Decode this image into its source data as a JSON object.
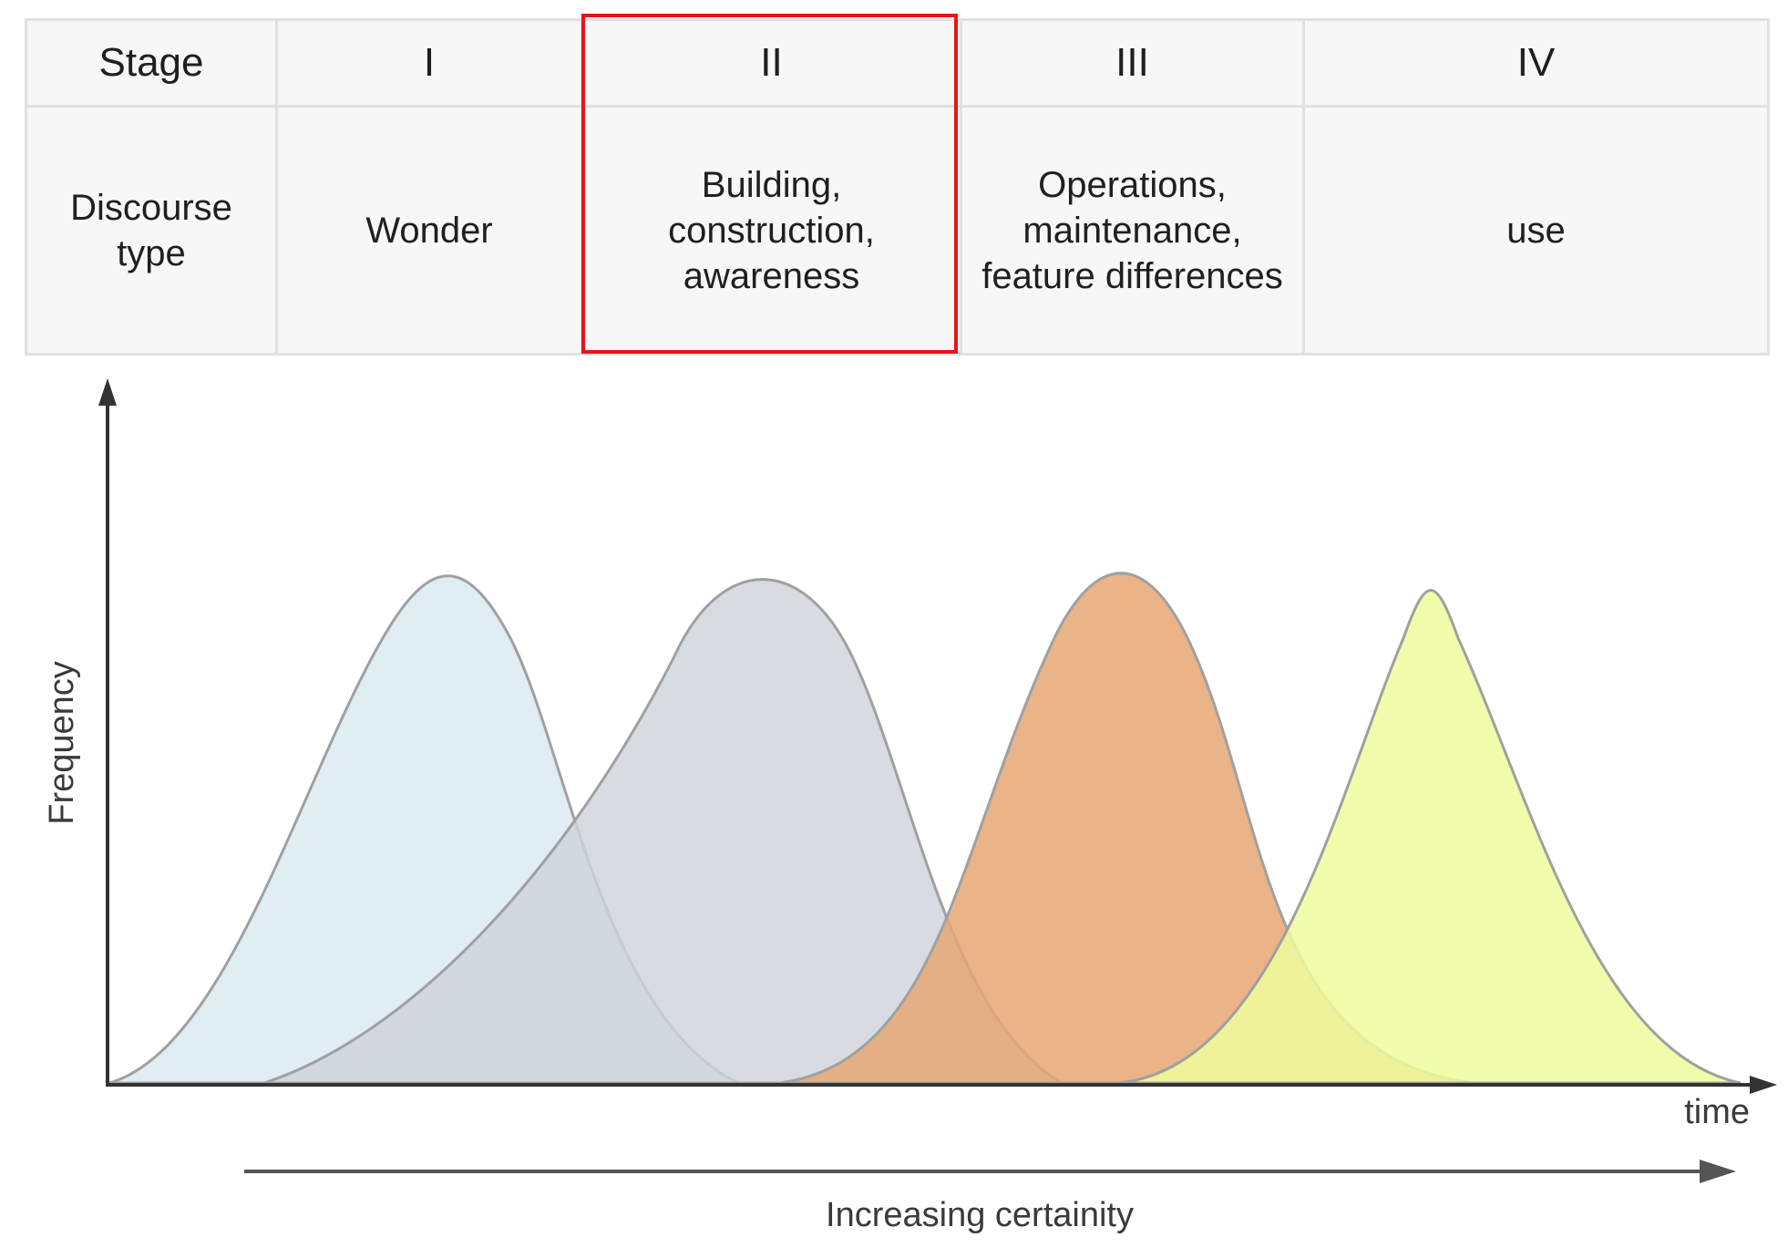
{
  "table": {
    "header": {
      "label": "Stage",
      "stages": [
        "I",
        "II",
        "III",
        "IV"
      ]
    },
    "row": {
      "label": "Discourse\ntype",
      "cells": [
        "Wonder",
        "Building,\nconstruction,\nawareness",
        "Operations,\nmaintenance,\nfeature differences",
        "use"
      ]
    },
    "highlighted_stage": "II",
    "highlight_color": "#e8141b"
  },
  "chart_data": {
    "type": "area",
    "ylabel": "Frequency",
    "xlabel": "time",
    "secondary_arrow_label": "Increasing certainity",
    "series": [
      {
        "stage": "I",
        "color": "#dbeaf1"
      },
      {
        "stage": "II",
        "color": "#cfd3da"
      },
      {
        "stage": "III",
        "color": "#e6a773"
      },
      {
        "stage": "IV",
        "color": "#eefd9c"
      }
    ]
  }
}
